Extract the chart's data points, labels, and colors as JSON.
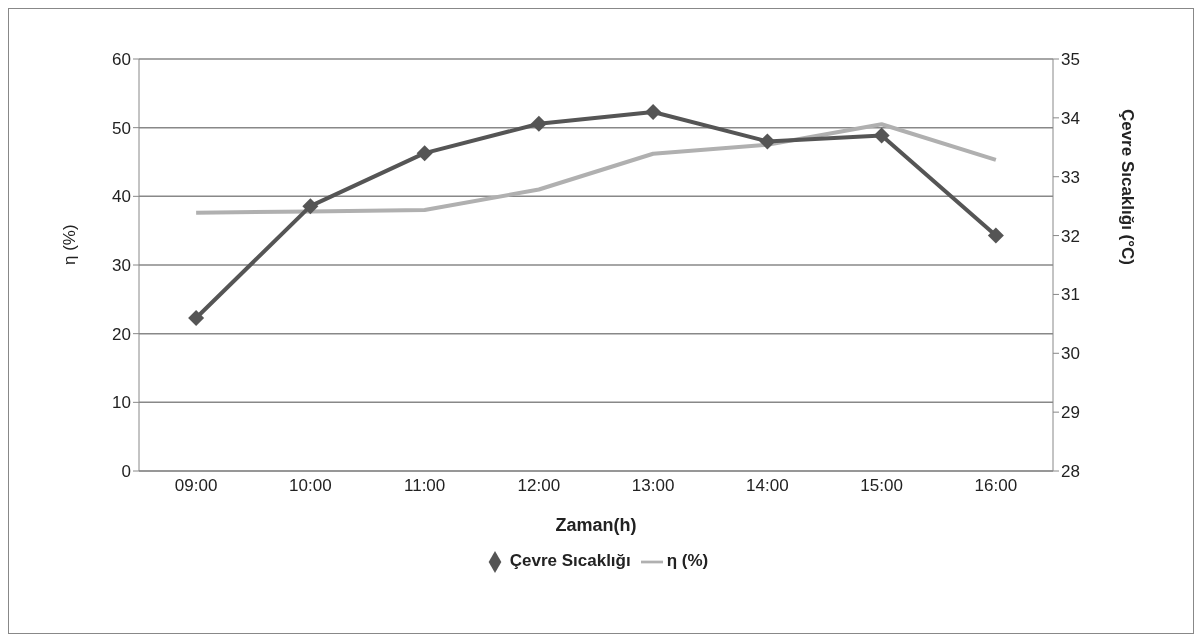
{
  "chart_data": {
    "type": "line",
    "xlabel": "Zaman(h)",
    "ylabel": "η (%)",
    "y2label": "Çevre Sıcaklığı (°C)",
    "categories": [
      "09:00",
      "10:00",
      "11:00",
      "12:00",
      "13:00",
      "14:00",
      "15:00",
      "16:00"
    ],
    "series": [
      {
        "name": "η  (%)",
        "color": "#b0b0b0",
        "marker": "none",
        "values": [
          37.6,
          37.8,
          38,
          41,
          46.2,
          47.5,
          50.5,
          45.3
        ]
      },
      {
        "name": "Çevre Sıcaklığı",
        "color": "#555555",
        "marker": "diamond",
        "axis": "y2",
        "values": [
          30.6,
          32.5,
          33.4,
          33.9,
          34.1,
          33.6,
          33.7,
          32.0
        ]
      }
    ],
    "ylim": [
      0,
      60
    ],
    "yticks": [
      0,
      10,
      20,
      30,
      40,
      50,
      60
    ],
    "y2lim": [
      28,
      35
    ],
    "y2ticks": [
      28,
      29,
      30,
      31,
      32,
      33,
      34,
      35
    ],
    "grid": "y",
    "legend": "bottom",
    "line_style": "solid"
  }
}
